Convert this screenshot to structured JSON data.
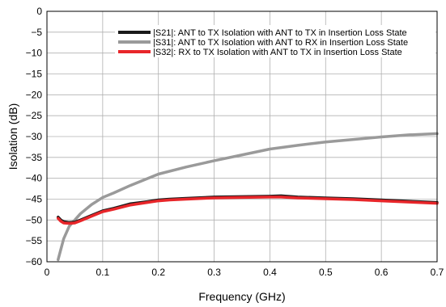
{
  "chart_data": {
    "type": "line",
    "title": "",
    "xlabel": "Frequency (GHz)",
    "ylabel": "Isolation (dB)",
    "xlim": [
      0,
      0.7
    ],
    "ylim": [
      -60,
      0
    ],
    "xticks": [
      0,
      0.1,
      0.2,
      0.3,
      0.4,
      0.5,
      0.6,
      0.7
    ],
    "xtick_labels": [
      "0",
      "0.1",
      "0.2",
      "0.3",
      "0.4",
      "0.5",
      "0.6",
      "0.7"
    ],
    "yticks": [
      0,
      -5,
      -10,
      -15,
      -20,
      -25,
      -30,
      -35,
      -40,
      -45,
      -50,
      -55,
      -60
    ],
    "ytick_labels": [
      "0",
      "−5",
      "−10",
      "−15",
      "−20",
      "−25",
      "−30",
      "−35",
      "−40",
      "−45",
      "−50",
      "−55",
      "−60"
    ],
    "grid": true,
    "legend_position": "top-right",
    "series": [
      {
        "name": "|S21|: ANT to TX Isolation with ANT to TX in Insertion Loss State",
        "color": "#1a1a1a",
        "x": [
          0.02,
          0.025,
          0.03,
          0.04,
          0.05,
          0.06,
          0.08,
          0.1,
          0.12,
          0.15,
          0.18,
          0.2,
          0.22,
          0.25,
          0.3,
          0.35,
          0.4,
          0.42,
          0.45,
          0.5,
          0.55,
          0.6,
          0.65,
          0.7
        ],
        "y": [
          -49.3,
          -50.0,
          -50.4,
          -50.6,
          -50.5,
          -50.0,
          -48.9,
          -47.8,
          -47.2,
          -46.1,
          -45.6,
          -45.2,
          -45.0,
          -44.8,
          -44.5,
          -44.4,
          -44.3,
          -44.2,
          -44.5,
          -44.7,
          -44.9,
          -45.2,
          -45.5,
          -45.8
        ]
      },
      {
        "name": "|S31|: ANT to TX Isolation with ANT to RX in Insertion Loss State",
        "color": "#9a9a9a",
        "x": [
          0.02,
          0.025,
          0.03,
          0.04,
          0.05,
          0.06,
          0.08,
          0.1,
          0.12,
          0.15,
          0.2,
          0.25,
          0.3,
          0.35,
          0.4,
          0.45,
          0.5,
          0.55,
          0.6,
          0.65,
          0.7
        ],
        "y": [
          -59.5,
          -57.0,
          -54.5,
          -51.5,
          -50.0,
          -48.5,
          -46.3,
          -44.6,
          -43.5,
          -41.7,
          -39.0,
          -37.3,
          -35.8,
          -34.4,
          -33.0,
          -32.1,
          -31.3,
          -30.7,
          -30.1,
          -29.6,
          -29.3
        ]
      },
      {
        "name": "|S32|: RX to TX Isolation with ANT to TX in Insertion Loss State",
        "color": "#e8262a",
        "x": [
          0.02,
          0.025,
          0.03,
          0.04,
          0.05,
          0.06,
          0.08,
          0.1,
          0.12,
          0.15,
          0.18,
          0.2,
          0.22,
          0.25,
          0.3,
          0.35,
          0.4,
          0.42,
          0.45,
          0.5,
          0.55,
          0.6,
          0.65,
          0.7
        ],
        "y": [
          -49.6,
          -50.3,
          -50.7,
          -50.8,
          -50.7,
          -50.2,
          -49.1,
          -48.0,
          -47.4,
          -46.4,
          -45.8,
          -45.4,
          -45.2,
          -45.0,
          -44.7,
          -44.6,
          -44.5,
          -44.5,
          -44.7,
          -44.9,
          -45.1,
          -45.4,
          -45.7,
          -46.0
        ]
      }
    ]
  }
}
